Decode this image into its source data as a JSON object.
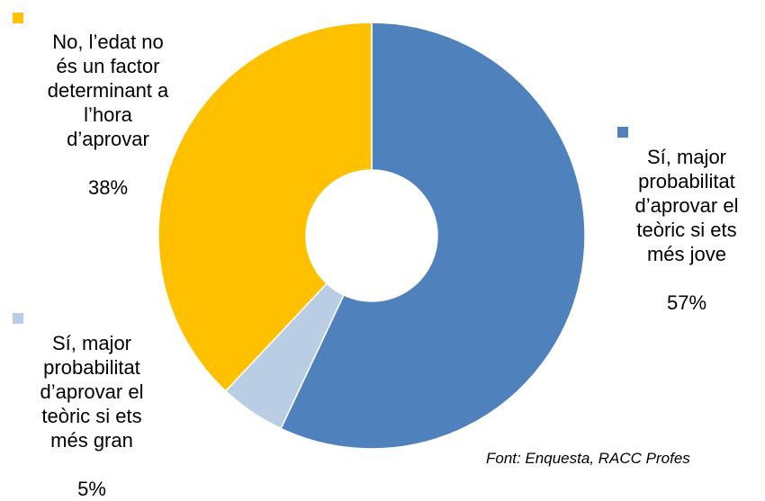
{
  "chart_data": {
    "type": "pie",
    "subtype": "donut",
    "title": "",
    "start_angle": "12 o'clock",
    "direction": "clockwise",
    "legend": "none",
    "slices": [
      {
        "label": "Sí, major\nprobabilitat\nd’aprovar el\nteòric si ets\nmés jove",
        "value": 57,
        "value_label": "57%",
        "color": "#4F81BD"
      },
      {
        "label": "Sí, major\nprobabilitat\nd’aprovar el\nteòric si ets\nmés gran",
        "value": 5,
        "value_label": "5%",
        "color": "#B9CDE5"
      },
      {
        "label": "No, l’edat no\nés un factor\ndeterminant a\nl’hora\nd’aprovar",
        "value": 38,
        "value_label": "38%",
        "color": "#FFC000"
      }
    ]
  },
  "source": "Font: Enquesta, RACC Profes"
}
